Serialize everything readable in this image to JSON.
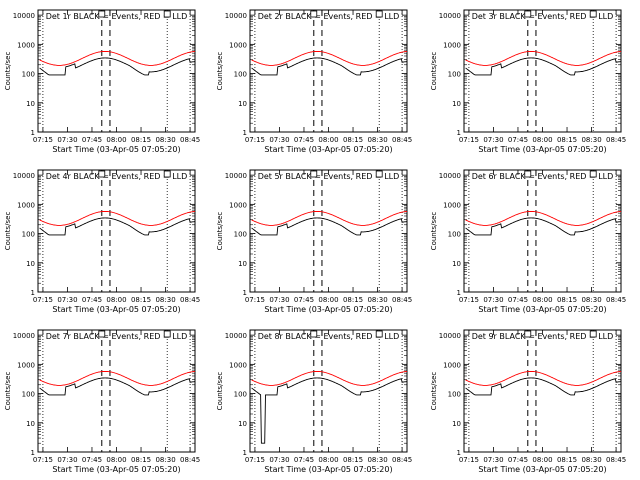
{
  "chart_data": [
    {
      "type": "line",
      "title": "Det 1r BLACK = Events, RED = LLD",
      "panel": "det-1r"
    },
    {
      "type": "line",
      "title": "Det 2r BLACK = Events, RED = LLD",
      "panel": "det-2r"
    },
    {
      "type": "line",
      "title": "Det 3r BLACK = Events, RED = LLD",
      "panel": "det-3r"
    },
    {
      "type": "line",
      "title": "Det 4r BLACK = Events, RED = LLD",
      "panel": "det-4r"
    },
    {
      "type": "line",
      "title": "Det 5r BLACK = Events, RED = LLD",
      "panel": "det-5r"
    },
    {
      "type": "line",
      "title": "Det 6r BLACK = Events, RED = LLD",
      "panel": "det-6r"
    },
    {
      "type": "line",
      "title": "Det 7r BLACK = Events, RED = LLD",
      "panel": "det-7r"
    },
    {
      "type": "line",
      "title": "Det 8r BLACK = Events, RED = LLD",
      "panel": "det-8r",
      "events_dropout": true
    },
    {
      "type": "line",
      "title": "Det 9r BLACK = Events, RED = LLD",
      "panel": "det-9r"
    }
  ],
  "shared_axes": {
    "xlabel": "Start Time (03-Apr-05 07:05:20)",
    "ylabel": "Counts/sec",
    "xticks": [
      "07:15",
      "07:30",
      "07:45",
      "08:00",
      "08:15",
      "08:30",
      "08:45"
    ],
    "xlim_minutes": [
      7.0,
      103.0
    ],
    "xtick_minutes": [
      10,
      25,
      40,
      55,
      70,
      85,
      100
    ],
    "ylog": true,
    "ylim": [
      1,
      15000
    ],
    "yticks": [
      "1",
      "10",
      "100",
      "1000",
      "10000"
    ],
    "ytick_values": [
      1,
      10,
      100,
      1000,
      10000
    ],
    "dotted_vlines_minutes": [
      10,
      86,
      100
    ],
    "dashed_vlines_minutes": [
      46,
      51
    ],
    "series": [
      {
        "name": "Events",
        "color": "#000000"
      },
      {
        "name": "LLD",
        "color": "#ff0000"
      }
    ]
  }
}
